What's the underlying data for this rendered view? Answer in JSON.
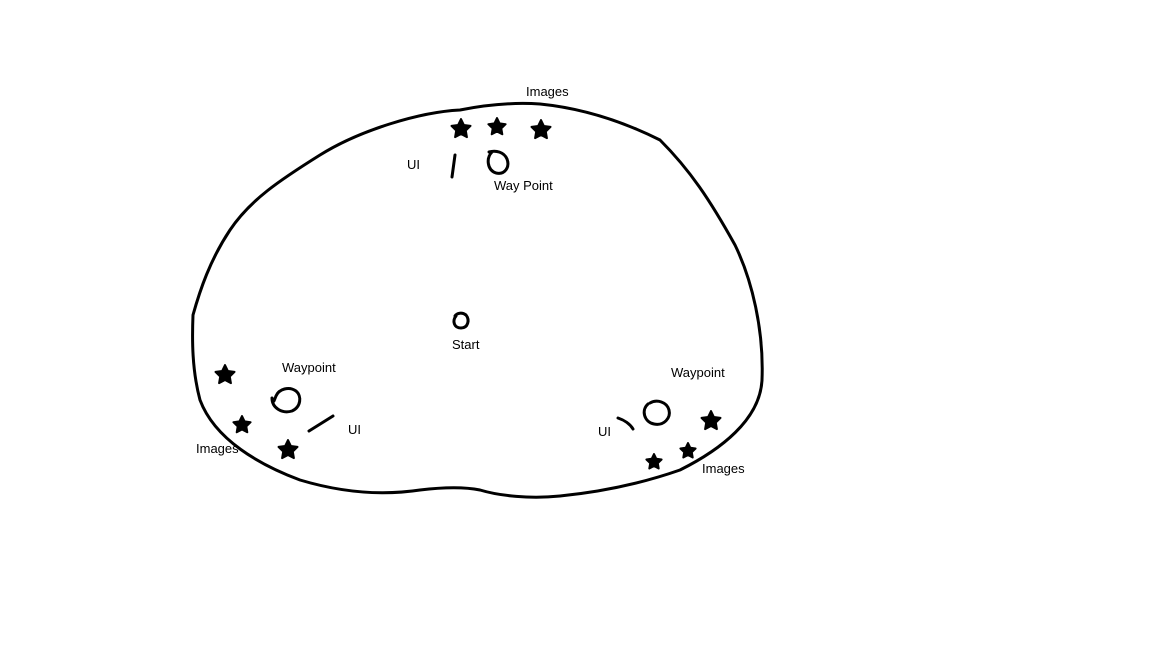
{
  "colors": {
    "ink": "#000000",
    "background": "#ffffff"
  },
  "map": {
    "outline_name": "map-boundary",
    "start": {
      "label": "Start",
      "icon": "start-circle-icon"
    },
    "regions": [
      {
        "id": "top",
        "images_label": "Images",
        "ui_label": "UI",
        "waypoint_label": "Way Point",
        "image_marker_count": 3,
        "icons": [
          "star-icon",
          "waypoint-circle-icon",
          "ui-stroke-icon"
        ]
      },
      {
        "id": "bottom-left",
        "images_label": "Images",
        "ui_label": "UI",
        "waypoint_label": "Waypoint",
        "image_marker_count": 3,
        "icons": [
          "star-icon",
          "waypoint-circle-icon",
          "ui-stroke-icon"
        ]
      },
      {
        "id": "bottom-right",
        "images_label": "Images",
        "ui_label": "UI",
        "waypoint_label": "Waypoint",
        "image_marker_count": 3,
        "icons": [
          "star-icon",
          "waypoint-circle-icon",
          "ui-stroke-icon"
        ]
      }
    ]
  }
}
